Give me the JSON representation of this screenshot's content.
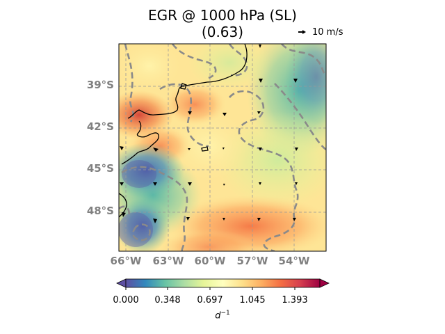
{
  "title": {
    "line1": "EGR @ 1000 hPa (SL)",
    "line2": "(0.63)"
  },
  "reference_vector": {
    "label": "10 m/s"
  },
  "lat_ticks": [
    "39°S",
    "42°S",
    "45°S",
    "48°S"
  ],
  "lon_ticks": [
    "66°W",
    "63°W",
    "60°W",
    "57°W",
    "54°W"
  ],
  "colorbar": {
    "ticks": [
      "0.000",
      "0.348",
      "0.697",
      "1.045",
      "1.393"
    ],
    "unit_base": "d",
    "unit_exp": "−1",
    "colormap": "Spectral_r",
    "extend": "both"
  },
  "chart_data": {
    "type": "heatmap",
    "title": "EGR @ 1000 hPa (SL)",
    "subtitle": "(0.63)",
    "xlabel": "",
    "ylabel": "",
    "xlim": [
      "66.5°W",
      "51.5°W"
    ],
    "ylim": [
      "51°S",
      "36°S"
    ],
    "grid": true,
    "field": "EGR",
    "units": "d^-1",
    "color_range": [
      0.0,
      1.742
    ],
    "overlays": [
      "coastline",
      "dashed grey contours",
      "wind vectors"
    ]
  }
}
